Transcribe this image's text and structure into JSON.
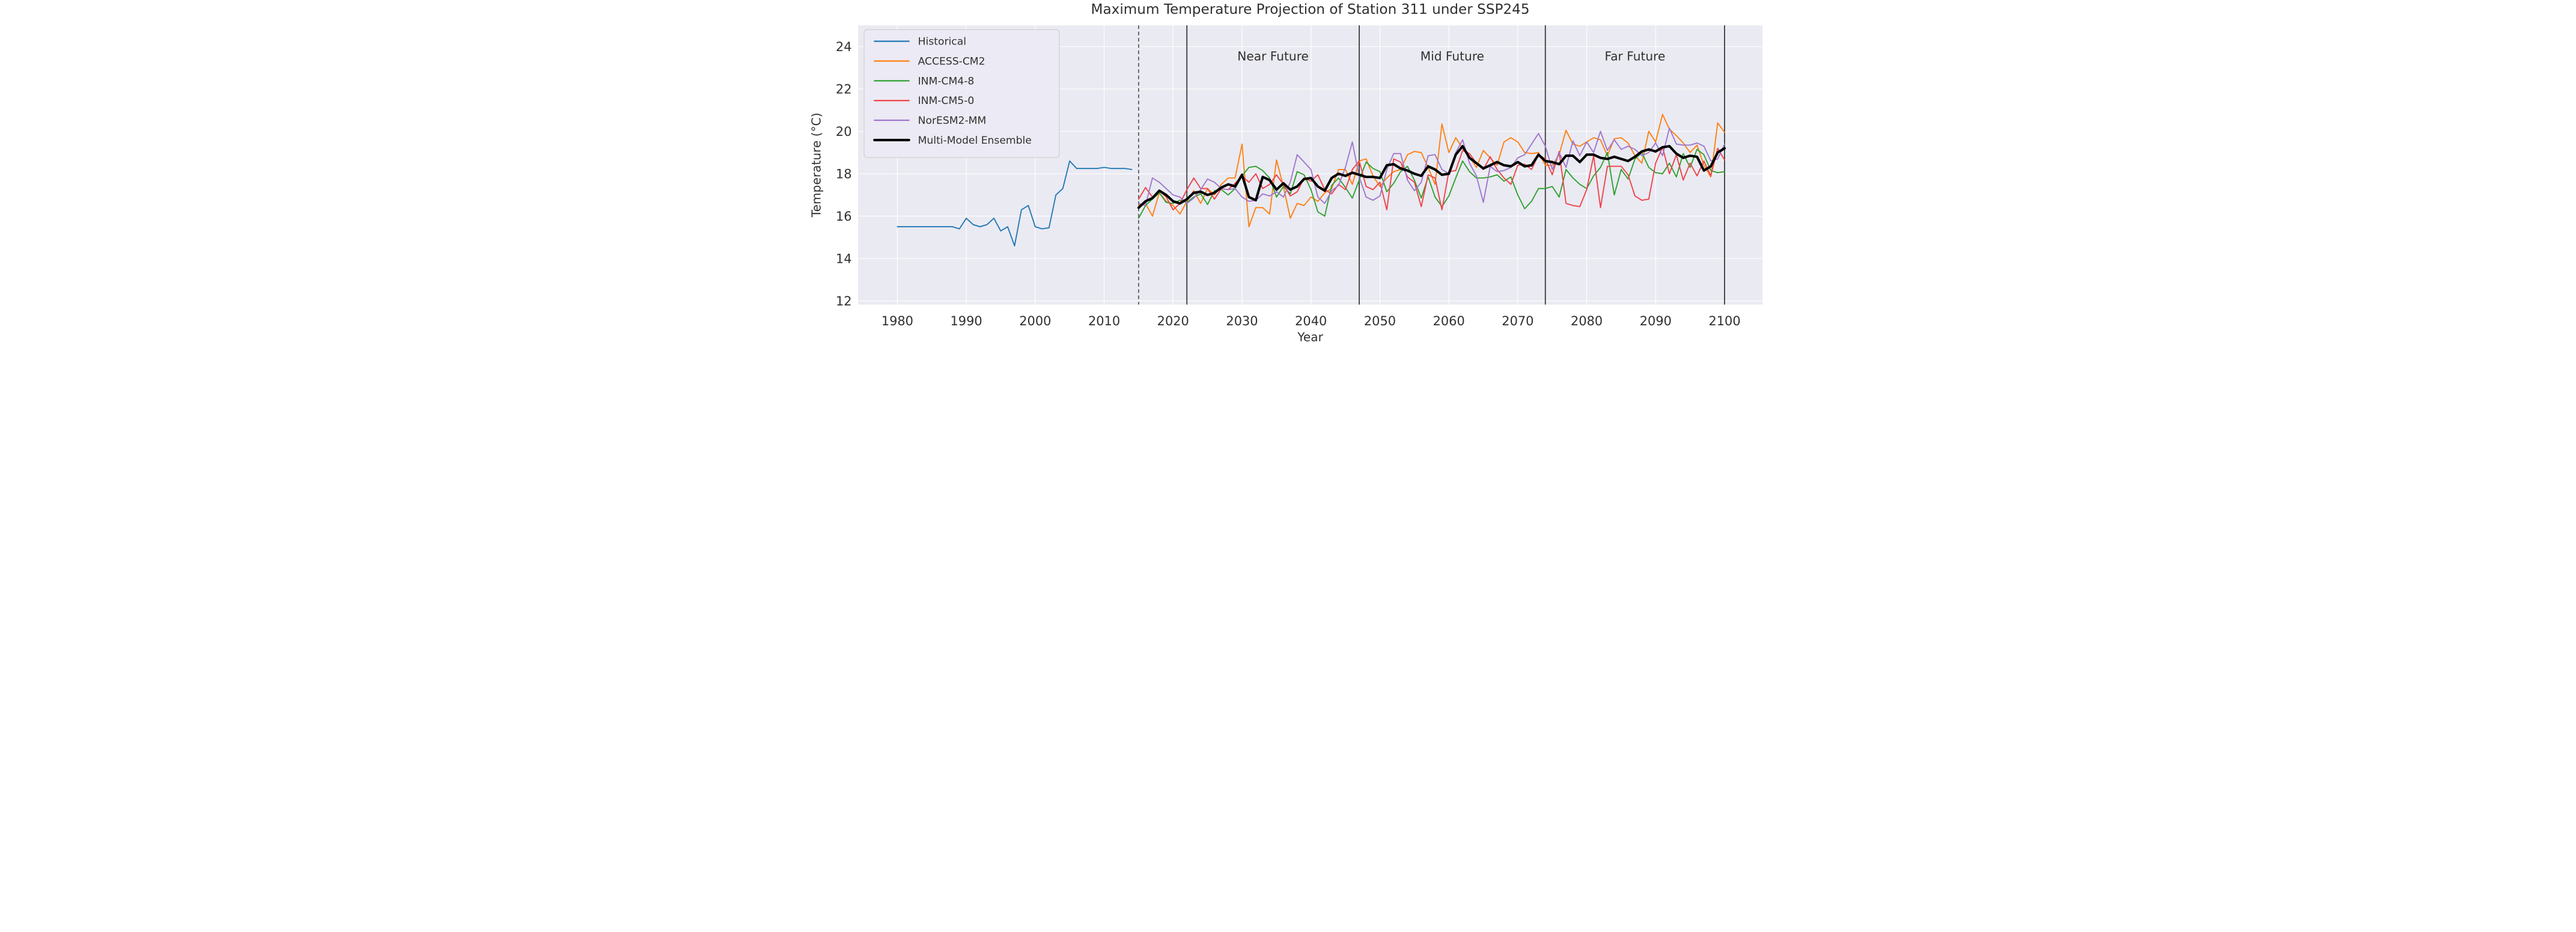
{
  "chart_data": {
    "type": "line",
    "title": "Maximum Temperature Projection of Station 311 under SSP245",
    "xlabel": "Year",
    "ylabel": "Temperature (°C)",
    "xlim": [
      1974.3,
      2105.5
    ],
    "ylim": [
      11.83,
      25.0
    ],
    "xticks": [
      1980,
      1990,
      2000,
      2010,
      2020,
      2030,
      2040,
      2050,
      2060,
      2070,
      2080,
      2090,
      2100
    ],
    "yticks": [
      12,
      14,
      16,
      18,
      20,
      22,
      24
    ],
    "grid": true,
    "background_color": "#eaeaf2",
    "gridline_color": "#ffffff",
    "text_color": "#303030",
    "vline_color": "#3f3f3f",
    "legend_position": "upper left",
    "vlines": [
      {
        "year": 2015,
        "style": "dashed"
      },
      {
        "year": 2022,
        "style": "solid"
      },
      {
        "year": 2047,
        "style": "solid"
      },
      {
        "year": 2074,
        "style": "solid"
      },
      {
        "year": 2100,
        "style": "solid"
      }
    ],
    "region_labels": [
      {
        "label": "Near Future",
        "year": 2034.5,
        "value": 23.35
      },
      {
        "label": "Mid Future",
        "year": 2060.5,
        "value": 23.35
      },
      {
        "label": "Far Future",
        "year": 2087.0,
        "value": 23.35
      }
    ],
    "series": [
      {
        "name": "Historical",
        "color": "#1f77b4",
        "width": 5,
        "start_year": 1980,
        "values": [
          15.5,
          15.5,
          15.5,
          15.5,
          15.5,
          15.5,
          15.5,
          15.5,
          15.5,
          15.4,
          15.9,
          15.6,
          15.5,
          15.6,
          15.9,
          15.3,
          15.5,
          14.6,
          16.3,
          16.5,
          15.5,
          15.4,
          15.45,
          17.0,
          17.3,
          18.6,
          18.25,
          18.25,
          18.25,
          18.25,
          18.3,
          18.25,
          18.25,
          18.25,
          18.2
        ]
      },
      {
        "name": "ACCESS-CM2",
        "color": "#ff7f0e",
        "width": 5,
        "start_year": 2015,
        "values": [
          16.5,
          16.6,
          16.0,
          17.1,
          16.7,
          16.5,
          16.1,
          16.7,
          17.2,
          16.6,
          17.3,
          17.0,
          17.5,
          17.8,
          17.8,
          19.4,
          15.5,
          16.4,
          16.4,
          16.1,
          18.65,
          17.4,
          15.9,
          16.6,
          16.5,
          16.9,
          16.7,
          17.1,
          17.3,
          18.2,
          18.2,
          17.5,
          18.6,
          18.7,
          17.9,
          17.4,
          17.8,
          18.1,
          18.2,
          18.9,
          19.05,
          19.0,
          18.3,
          17.5,
          20.35,
          19.0,
          19.7,
          19.2,
          18.8,
          18.3,
          19.1,
          18.75,
          18.4,
          19.5,
          19.7,
          19.5,
          19.0,
          18.95,
          19.0,
          18.4,
          18.4,
          18.9,
          20.05,
          19.4,
          19.3,
          19.5,
          19.7,
          19.6,
          18.85,
          19.65,
          19.7,
          19.45,
          18.85,
          18.5,
          20.0,
          19.5,
          20.8,
          20.1,
          19.8,
          19.45,
          19.0,
          19.35,
          18.4,
          17.85,
          20.4,
          19.95
        ]
      },
      {
        "name": "INM-CM4-8",
        "color": "#2ca02c",
        "width": 5,
        "start_year": 2015,
        "values": [
          15.9,
          16.5,
          16.8,
          17.1,
          16.65,
          16.6,
          16.75,
          16.65,
          16.9,
          17.05,
          16.55,
          17.2,
          17.25,
          17.0,
          17.3,
          17.9,
          18.3,
          18.35,
          18.15,
          17.8,
          16.9,
          17.4,
          17.05,
          18.1,
          17.95,
          17.25,
          16.2,
          16.0,
          17.45,
          17.8,
          17.35,
          16.85,
          17.7,
          18.55,
          18.25,
          18.1,
          17.15,
          17.55,
          18.1,
          18.35,
          17.7,
          16.85,
          17.85,
          16.9,
          16.45,
          16.95,
          17.8,
          18.6,
          18.1,
          17.8,
          17.8,
          17.85,
          17.95,
          17.65,
          17.85,
          17.0,
          16.35,
          16.7,
          17.3,
          17.3,
          17.4,
          16.9,
          18.2,
          17.8,
          17.5,
          17.3,
          17.9,
          18.3,
          19.0,
          17.0,
          18.2,
          17.75,
          18.7,
          19.0,
          18.3,
          18.05,
          18.0,
          18.5,
          17.85,
          18.95,
          18.3,
          19.15,
          18.9,
          18.15,
          18.05,
          18.1
        ]
      },
      {
        "name": "INM-CM5-0",
        "color": "#ef4146",
        "width": 5,
        "start_year": 2015,
        "values": [
          16.8,
          17.35,
          16.9,
          17.2,
          16.9,
          16.3,
          16.6,
          17.25,
          17.8,
          17.3,
          17.3,
          16.8,
          17.3,
          17.25,
          17.55,
          17.9,
          17.6,
          18.0,
          17.3,
          17.5,
          17.95,
          17.5,
          16.95,
          17.15,
          17.8,
          17.65,
          17.95,
          17.25,
          17.05,
          17.5,
          17.25,
          18.2,
          18.6,
          17.4,
          17.25,
          17.6,
          16.3,
          18.7,
          18.55,
          17.85,
          17.6,
          16.45,
          17.95,
          17.8,
          16.3,
          18.1,
          18.15,
          19.1,
          18.95,
          18.5,
          18.2,
          18.8,
          18.2,
          17.8,
          17.5,
          18.4,
          18.45,
          18.2,
          18.9,
          18.7,
          17.95,
          19.05,
          16.6,
          16.5,
          16.45,
          17.25,
          18.85,
          16.4,
          18.35,
          18.35,
          18.35,
          17.95,
          16.95,
          16.75,
          16.8,
          18.5,
          19.25,
          18.0,
          18.9,
          17.7,
          18.5,
          17.9,
          18.6,
          17.9,
          19.2,
          18.65
        ]
      },
      {
        "name": "NorESM2-MM",
        "color": "#9e75cc",
        "width": 5,
        "start_year": 2015,
        "values": [
          16.6,
          16.5,
          17.8,
          17.6,
          17.3,
          17.0,
          16.9,
          16.6,
          16.85,
          17.25,
          17.75,
          17.6,
          17.3,
          17.25,
          17.3,
          16.9,
          16.7,
          16.75,
          17.05,
          16.95,
          17.15,
          16.9,
          17.6,
          18.9,
          18.55,
          18.2,
          16.9,
          16.6,
          17.2,
          17.45,
          18.3,
          19.5,
          17.85,
          16.9,
          16.75,
          16.95,
          18.2,
          18.95,
          18.95,
          17.7,
          17.2,
          17.6,
          18.85,
          18.9,
          18.2,
          18.0,
          19.0,
          19.6,
          18.5,
          17.9,
          16.65,
          18.35,
          18.1,
          18.15,
          18.3,
          18.75,
          18.9,
          19.4,
          19.9,
          19.3,
          18.2,
          19.0,
          18.3,
          19.55,
          18.85,
          19.5,
          19.0,
          20.0,
          19.1,
          19.6,
          19.15,
          19.3,
          19.15,
          18.85,
          19.0,
          19.45,
          18.85,
          20.15,
          19.4,
          19.35,
          19.35,
          19.45,
          19.3,
          18.6,
          18.7,
          19.4
        ]
      },
      {
        "name": "Multi-Model Ensemble",
        "color": "#000000",
        "width": 11,
        "start_year": 2015,
        "values": [
          16.4,
          16.7,
          16.85,
          17.2,
          17.0,
          16.7,
          16.6,
          16.8,
          17.1,
          17.15,
          17.0,
          17.1,
          17.35,
          17.5,
          17.4,
          17.95,
          16.9,
          16.75,
          17.85,
          17.7,
          17.25,
          17.55,
          17.25,
          17.4,
          17.75,
          17.8,
          17.4,
          17.2,
          17.8,
          18.0,
          17.9,
          18.05,
          17.95,
          17.85,
          17.85,
          17.8,
          18.4,
          18.45,
          18.25,
          18.15,
          18.0,
          17.9,
          18.35,
          18.2,
          17.95,
          18.0,
          18.9,
          19.3,
          18.75,
          18.5,
          18.25,
          18.4,
          18.55,
          18.4,
          18.35,
          18.55,
          18.35,
          18.4,
          18.9,
          18.6,
          18.55,
          18.45,
          18.85,
          18.85,
          18.55,
          18.9,
          18.9,
          18.75,
          18.7,
          18.8,
          18.7,
          18.6,
          18.8,
          19.05,
          19.15,
          19.05,
          19.25,
          19.3,
          18.95,
          18.75,
          18.85,
          18.8,
          18.15,
          18.35,
          19.0,
          19.2
        ]
      }
    ],
    "legend_entries": [
      {
        "label": "Historical",
        "color": "#1f77b4",
        "width": 6
      },
      {
        "label": "ACCESS-CM2",
        "color": "#ff7f0e",
        "width": 6
      },
      {
        "label": "INM-CM4-8",
        "color": "#2ca02c",
        "width": 6
      },
      {
        "label": "INM-CM5-0",
        "color": "#ef4146",
        "width": 6
      },
      {
        "label": "NorESM2-MM",
        "color": "#9e75cc",
        "width": 6
      },
      {
        "label": "Multi-Model Ensemble",
        "color": "#000000",
        "width": 11
      }
    ]
  }
}
